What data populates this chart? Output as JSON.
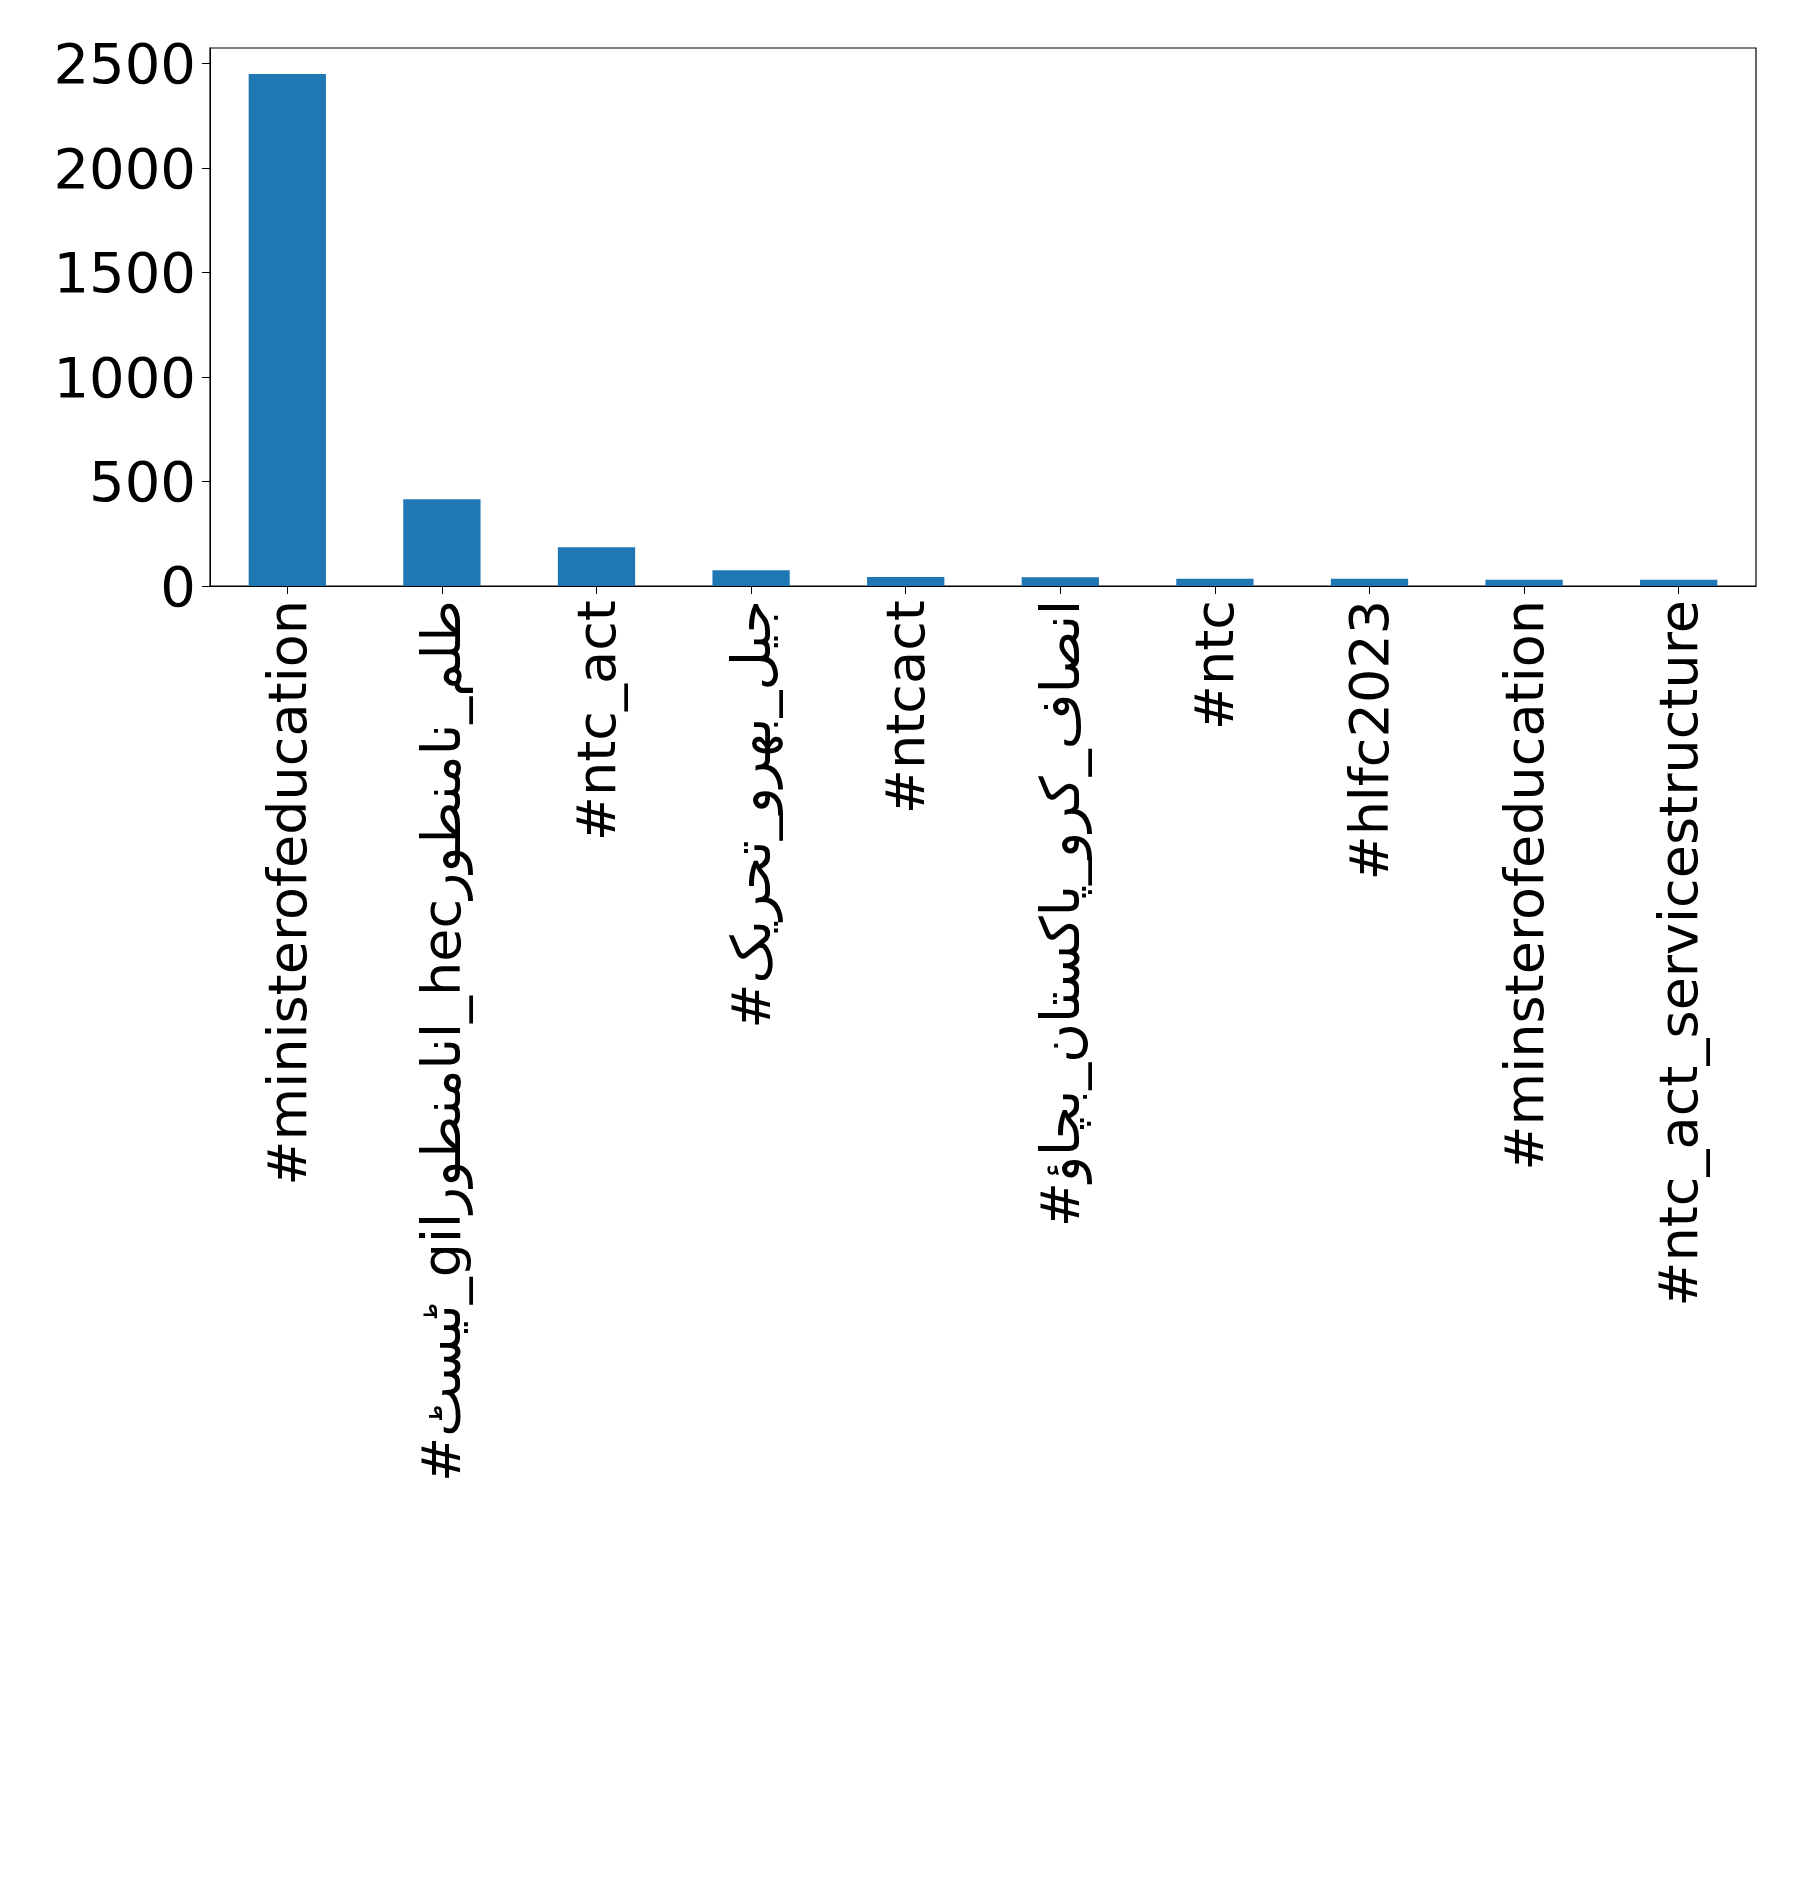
{
  "chart_data": {
    "type": "bar",
    "categories": [
      "#ministerofeducation",
      "#ٹیسٹ_gilانامنطور_hecطلم_نامنطور",
      "#ntc_act",
      "#جیل_بھرو_تحریک",
      "#ntcact",
      "#انصاف_کرو_پاکستان_بچاؤ",
      "#ntc",
      "#hlfc2023",
      "#minsterofeducation",
      "#ntc_act_servicestructure"
    ],
    "values": [
      2450,
      415,
      185,
      75,
      43,
      42,
      35,
      35,
      30,
      30
    ],
    "color": "#1f77b4",
    "ylim": [
      0,
      2575
    ],
    "yticks": [
      0,
      500,
      1000,
      1500,
      2000,
      2500
    ],
    "grid": false
  }
}
